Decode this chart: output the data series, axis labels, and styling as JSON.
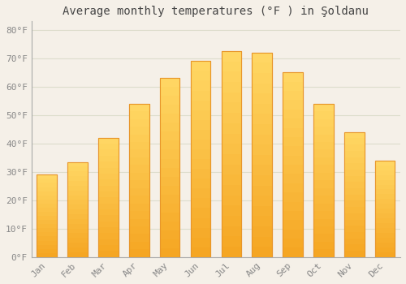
{
  "title": "Average monthly temperatures (°F ) in Şoldanu",
  "months": [
    "Jan",
    "Feb",
    "Mar",
    "Apr",
    "May",
    "Jun",
    "Jul",
    "Aug",
    "Sep",
    "Oct",
    "Nov",
    "Dec"
  ],
  "values": [
    29,
    33.5,
    42,
    54,
    63,
    69,
    72.5,
    72,
    65,
    54,
    44,
    34
  ],
  "bar_color_bottom": "#F5A623",
  "bar_color_top": "#FFD966",
  "bar_edge_color": "#E8962A",
  "background_color": "#F5F0E8",
  "plot_bg_color": "#F5F0E8",
  "grid_color": "#DDDDCC",
  "ylim": [
    0,
    83
  ],
  "yticks": [
    0,
    10,
    20,
    30,
    40,
    50,
    60,
    70,
    80
  ],
  "ytick_labels": [
    "0°F",
    "10°F",
    "20°F",
    "30°F",
    "40°F",
    "50°F",
    "60°F",
    "70°F",
    "80°F"
  ],
  "title_fontsize": 10,
  "tick_fontsize": 8,
  "title_color": "#444444",
  "tick_color": "#888888",
  "font_family": "monospace",
  "bar_width": 0.65
}
